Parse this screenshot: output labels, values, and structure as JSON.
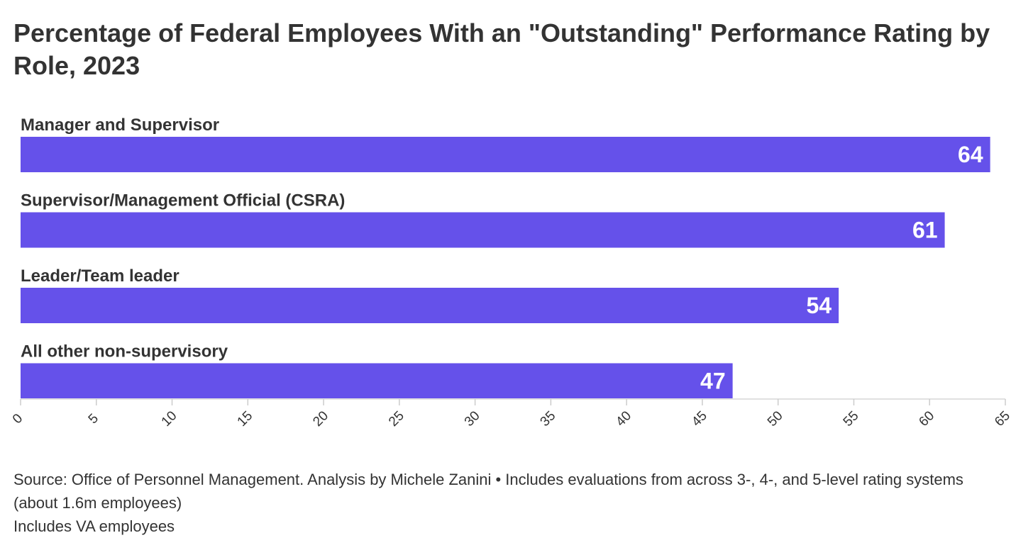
{
  "chart_data": {
    "type": "bar",
    "orientation": "horizontal",
    "title": "Percentage of Federal Employees With an \"Outstanding\" Performance Rating by Role, 2023",
    "categories": [
      "Manager and Supervisor",
      "Supervisor/Management Official (CSRA)",
      "Leader/Team leader",
      "All other non-supervisory"
    ],
    "values": [
      64,
      61,
      54,
      47
    ],
    "xlim": [
      0,
      65
    ],
    "xticks": [
      "0",
      "5",
      "10",
      "15",
      "20",
      "25",
      "30",
      "35",
      "40",
      "45",
      "50",
      "55",
      "60",
      "65"
    ],
    "bar_color": "#6551ea",
    "data_labels": true,
    "grid": false
  },
  "footer": {
    "source": "Source: Office of Personnel Management. Analysis by Michele Zanini • Includes evaluations from across 3-, 4-, and 5-level rating systems (about 1.6m employees)",
    "note": "Includes VA employees"
  }
}
